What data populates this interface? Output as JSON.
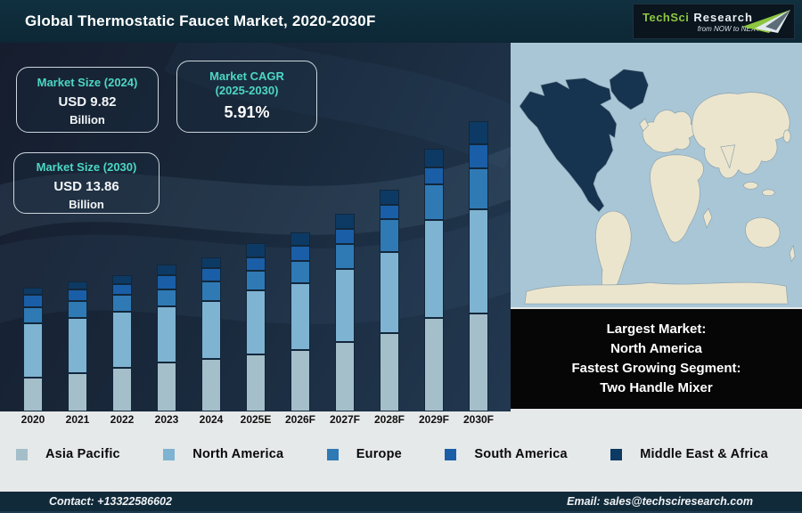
{
  "header": {
    "title": "Global Thermostatic Faucet Market, 2020-2030F",
    "logo": {
      "brand": "TechSci",
      "brand2": "Research",
      "tagline": "from NOW to NEXT",
      "brand_color": "#8dc63f"
    }
  },
  "info_boxes": {
    "market_size_2024": {
      "title": "Market Size (2024)",
      "value": "USD 9.82",
      "unit": "Billion"
    },
    "market_cagr": {
      "title_line1": "Market CAGR",
      "title_line2": "(2025-2030)",
      "value": "5.91%"
    },
    "market_size_2030": {
      "title": "Market Size (2030)",
      "value": "USD 13.86",
      "unit": "Billion"
    }
  },
  "chart_data": {
    "type": "bar",
    "stacked": true,
    "title": "Global Thermostatic Faucet Market, 2020-2030F",
    "categories": [
      "2020",
      "2021",
      "2022",
      "2023",
      "2024",
      "2025E",
      "2026F",
      "2027F",
      "2028F",
      "2029F",
      "2030F"
    ],
    "value_unit": "relative segment height in px (no y-axis shown in figure)",
    "series": [
      {
        "name": "Asia Pacific",
        "color": "#a4bfca",
        "values": [
          38,
          43,
          49,
          55,
          59,
          64,
          69,
          78,
          88,
          105,
          110
        ]
      },
      {
        "name": "North America",
        "color": "#7fb3d2",
        "values": [
          61,
          62,
          63,
          63,
          65,
          72,
          75,
          82,
          91,
          110,
          117
        ]
      },
      {
        "name": "Europe",
        "color": "#2f7ab4",
        "values": [
          18,
          19,
          19,
          19,
          22,
          22,
          25,
          28,
          37,
          40,
          46
        ]
      },
      {
        "name": "South America",
        "color": "#1a5ea7",
        "values": [
          14,
          13,
          12,
          16,
          15,
          15,
          17,
          17,
          16,
          19,
          27
        ]
      },
      {
        "name": "Middle East & Africa",
        "color": "#0d3a64",
        "values": [
          8,
          9,
          10,
          12,
          12,
          16,
          15,
          17,
          17,
          21,
          26
        ]
      }
    ],
    "annotations": {
      "market_size_2024_usd_billion": 9.82,
      "market_size_2030_usd_billion": 13.86,
      "cagr_2025_2030_percent": 5.91
    },
    "legend_position": "bottom",
    "grid": false,
    "xlabel": "",
    "ylabel": ""
  },
  "map": {
    "highlighted_region": "North America",
    "ocean_color": "#a9c6d6",
    "land_color": "#ece5cd",
    "highlight_color": "#16334f"
  },
  "callout": {
    "lines": [
      "Largest Market:",
      "North America",
      "Fastest Growing Segment:",
      "Two Handle Mixer"
    ]
  },
  "footer": {
    "contact": "Contact: +13322586602",
    "email": "Email: sales@techsciresearch.com"
  }
}
